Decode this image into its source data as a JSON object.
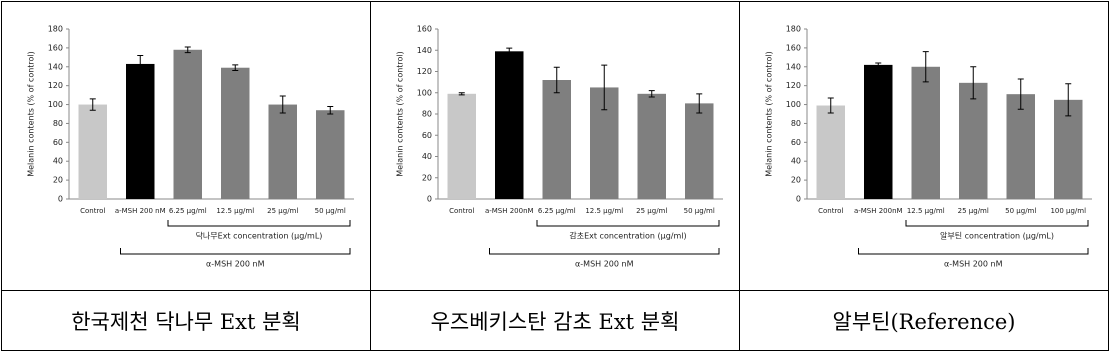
{
  "chart_data": [
    {
      "type": "bar",
      "y_label": "Melanin contents (% of control)",
      "categories": [
        "Control",
        "a-MSH 200 nM",
        "6.25 μg/ml",
        "12.5 μg/ml",
        "25 μg/ml",
        "50 μg/ml"
      ],
      "values": [
        100,
        143,
        158,
        139,
        100,
        94
      ],
      "errors": [
        6,
        9,
        3,
        3,
        9,
        4
      ],
      "colors": [
        "#c8c8c8",
        "#000000",
        "#7f7f7f",
        "#7f7f7f",
        "#7f7f7f",
        "#7f7f7f"
      ],
      "ylim": [
        0,
        180
      ],
      "yticks": [
        0,
        20,
        40,
        60,
        80,
        100,
        120,
        140,
        160,
        180
      ],
      "annotations": [
        "닥나무Ext concentration (μg/mL)",
        "α-MSH 200 nM"
      ]
    },
    {
      "type": "bar",
      "y_label": "Melanin contents (% of control)",
      "categories": [
        "Control",
        "a-MSH 200nM",
        "6.25 μg/ml",
        "12.5 μg/ml",
        "25 μg/ml",
        "50 μg/ml"
      ],
      "values": [
        99,
        139,
        112,
        105,
        99,
        90
      ],
      "errors": [
        1,
        3,
        12,
        21,
        3,
        9
      ],
      "colors": [
        "#c8c8c8",
        "#000000",
        "#7f7f7f",
        "#7f7f7f",
        "#7f7f7f",
        "#7f7f7f"
      ],
      "ylim": [
        0,
        160
      ],
      "yticks": [
        0,
        20,
        40,
        60,
        80,
        100,
        120,
        140,
        160
      ],
      "annotations": [
        "감초Ext concentration (μg/ml)",
        "α-MSH 200 nM"
      ]
    },
    {
      "type": "bar",
      "y_label": "Melanin contents (% of control)",
      "categories": [
        "Control",
        "a-MSH 200nM",
        "12.5 μg/ml",
        "25 μg/ml",
        "50 μg/ml",
        "100 μg/ml"
      ],
      "values": [
        99,
        142,
        140,
        123,
        111,
        105
      ],
      "errors": [
        8,
        2,
        16,
        17,
        16,
        17
      ],
      "colors": [
        "#c8c8c8",
        "#000000",
        "#7f7f7f",
        "#7f7f7f",
        "#7f7f7f",
        "#7f7f7f"
      ],
      "ylim": [
        0,
        180
      ],
      "yticks": [
        0,
        20,
        40,
        60,
        80,
        100,
        120,
        140,
        160,
        180
      ],
      "annotations": [
        "알부틴 concentration (μg/mL)",
        "α-MSH 200 nM"
      ]
    }
  ],
  "table": {
    "captions": [
      "한국제천 닥나무 Ext 분획",
      "우즈베키스탄 감초 Ext 분획",
      "알부틴(Reference)"
    ]
  }
}
